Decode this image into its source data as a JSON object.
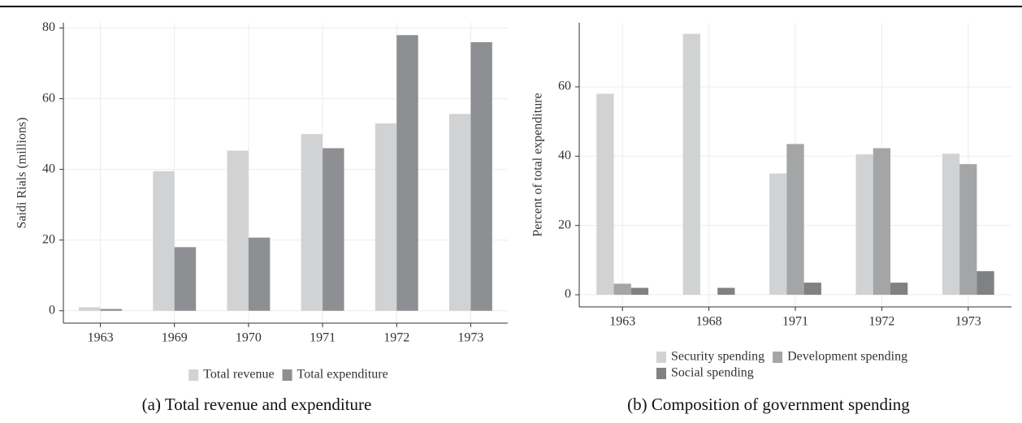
{
  "chart_data": [
    {
      "type": "bar",
      "caption": "(a) Total revenue and expenditure",
      "y_label": "Saidi Rials (millions)",
      "categories": [
        "1963",
        "1969",
        "1970",
        "1971",
        "1972",
        "1973"
      ],
      "series": [
        {
          "name": "Total revenue",
          "color": "#d1d2d4",
          "values": [
            1,
            39.5,
            45.3,
            50,
            53,
            55.7
          ]
        },
        {
          "name": "Total expenditure",
          "color": "#8e8f92",
          "values": [
            0.5,
            18,
            20.7,
            46,
            78,
            76
          ]
        }
      ],
      "ylim": [
        -3.5,
        81.5
      ],
      "yticks": [
        0,
        20,
        40,
        60,
        80
      ],
      "grid": true
    },
    {
      "type": "bar",
      "caption": "(b) Composition of government spending",
      "y_label": "Percent of total expenditure",
      "categories": [
        "1963",
        "1968",
        "1971",
        "1972",
        "1973"
      ],
      "series": [
        {
          "name": "Security spending",
          "color": "#d1d2d4",
          "values": [
            58,
            75.3,
            35,
            40.5,
            40.7
          ]
        },
        {
          "name": "Development spending",
          "color": "#a4a5a7",
          "values": [
            3.2,
            null,
            43.5,
            42.3,
            37.7
          ]
        },
        {
          "name": "Social spending",
          "color": "#808183",
          "values": [
            2,
            2,
            3.5,
            3.5,
            6.8
          ]
        }
      ],
      "ylim": [
        -3.5,
        78.5
      ],
      "yticks": [
        0,
        20,
        40,
        60
      ],
      "grid": true
    }
  ]
}
